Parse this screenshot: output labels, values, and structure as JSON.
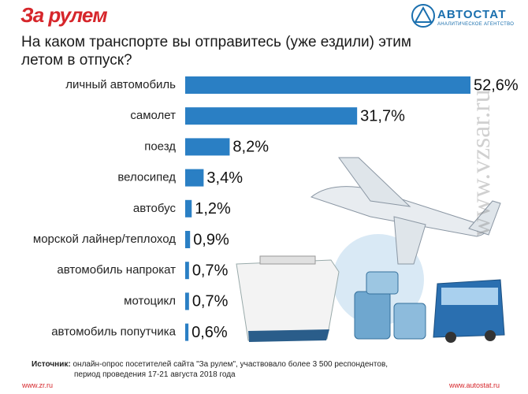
{
  "header": {
    "logo": "За рулем",
    "brand": "АВТОСТАТ",
    "brand_subtitle": "АНАЛИТИЧЕСКОЕ АГЕНТСТВО"
  },
  "chart_data": {
    "type": "bar",
    "orientation": "horizontal",
    "title": "На каком транспорте вы отправитесь (уже ездили) этим летом в отпуск?",
    "categories": [
      "личный автомобиль",
      "самолет",
      "поезд",
      "велосипед",
      "автобус",
      "морской лайнер/теплоход",
      "автомобиль напрокат",
      "мотоцикл",
      "автомобиль попутчика"
    ],
    "values": [
      52.6,
      31.7,
      8.2,
      3.4,
      1.2,
      0.9,
      0.7,
      0.7,
      0.6
    ],
    "value_labels": [
      "52,6%",
      "31,7%",
      "8,2%",
      "3,4%",
      "1,2%",
      "0,9%",
      "0,7%",
      "0,7%",
      "0,6%"
    ],
    "color": "#2a7fc4"
  },
  "source": {
    "label": "Источник:",
    "lines": [
      "онлайн-опрос посетителей сайта \"За рулем\", участвовало более 3 500 респондентов,",
      "период проведения 17-21 августа 2018 года"
    ]
  },
  "footer": {
    "left": "www.zr.ru",
    "right": "www.autostat.ru",
    "watermark": "www.vzsar.ru"
  }
}
